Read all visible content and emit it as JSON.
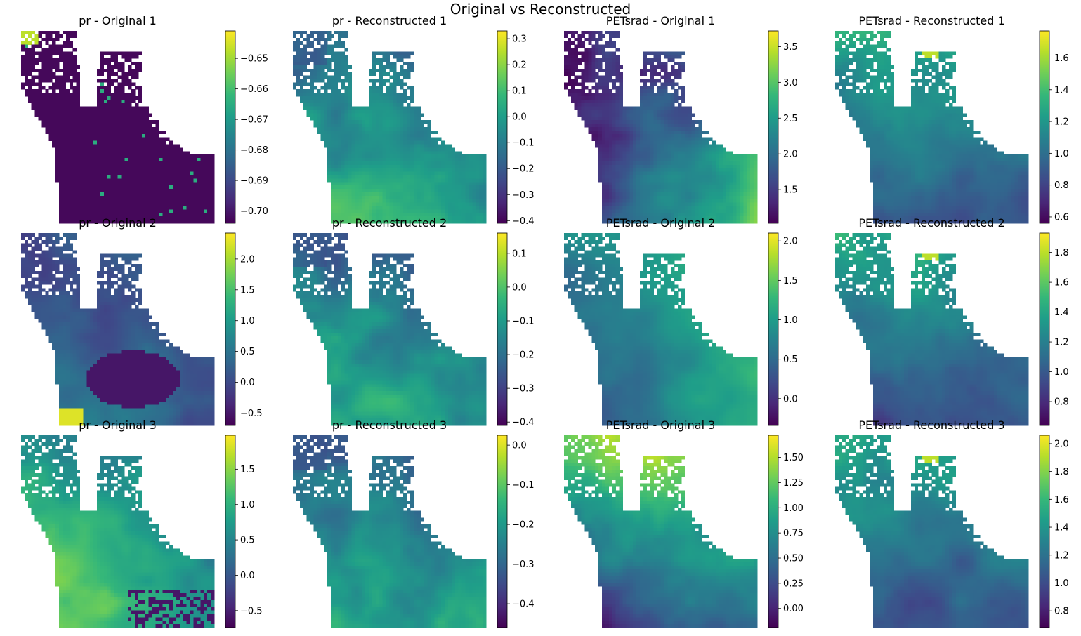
{
  "figure": {
    "suptitle": "Original vs Reconstructed"
  },
  "chart_data": [
    {
      "type": "heatmap",
      "title": "pr - Original 1",
      "variable": "pr",
      "panel": "Original",
      "index": 1,
      "colormap": "viridis",
      "colorbar": {
        "range": [
          -0.704,
          -0.641
        ],
        "ticks": [
          -0.7,
          -0.69,
          -0.68,
          -0.67,
          -0.66,
          -0.65
        ],
        "tick_labels": [
          "−0.70",
          "−0.69",
          "−0.68",
          "−0.67",
          "−0.66",
          "−0.65"
        ]
      }
    },
    {
      "type": "heatmap",
      "title": "pr - Reconstructed 1",
      "variable": "pr",
      "panel": "Reconstructed",
      "index": 1,
      "colormap": "viridis",
      "colorbar": {
        "range": [
          -0.41,
          0.33
        ],
        "ticks": [
          -0.4,
          -0.3,
          -0.2,
          -0.1,
          0.0,
          0.1,
          0.2,
          0.3
        ],
        "tick_labels": [
          "−0.4",
          "−0.3",
          "−0.2",
          "−0.1",
          "0.0",
          "0.1",
          "0.2",
          "0.3"
        ]
      }
    },
    {
      "type": "heatmap",
      "title": "PETsrad - Original 1",
      "variable": "PETsrad",
      "panel": "Original",
      "index": 1,
      "colormap": "viridis",
      "colorbar": {
        "range": [
          1.03,
          3.72
        ],
        "ticks": [
          1.5,
          2.0,
          2.5,
          3.0,
          3.5
        ],
        "tick_labels": [
          "1.5",
          "2.0",
          "2.5",
          "3.0",
          "3.5"
        ]
      }
    },
    {
      "type": "heatmap",
      "title": "PETsrad - Reconstructed 1",
      "variable": "PETsrad",
      "panel": "Reconstructed",
      "index": 1,
      "colormap": "viridis",
      "colorbar": {
        "range": [
          0.56,
          1.77
        ],
        "ticks": [
          0.6,
          0.8,
          1.0,
          1.2,
          1.4,
          1.6
        ],
        "tick_labels": [
          "0.6",
          "0.8",
          "1.0",
          "1.2",
          "1.4",
          "1.6"
        ]
      }
    },
    {
      "type": "heatmap",
      "title": "pr - Original 2",
      "variable": "pr",
      "panel": "Original",
      "index": 2,
      "colormap": "viridis",
      "colorbar": {
        "range": [
          -0.7,
          2.42
        ],
        "ticks": [
          -0.5,
          0.0,
          0.5,
          1.0,
          1.5,
          2.0
        ],
        "tick_labels": [
          "−0.5",
          "0.0",
          "0.5",
          "1.0",
          "1.5",
          "2.0"
        ]
      }
    },
    {
      "type": "heatmap",
      "title": "pr - Reconstructed 2",
      "variable": "pr",
      "panel": "Reconstructed",
      "index": 2,
      "colormap": "viridis",
      "colorbar": {
        "range": [
          -0.41,
          0.16
        ],
        "ticks": [
          -0.4,
          -0.3,
          -0.2,
          -0.1,
          0.0,
          0.1
        ],
        "tick_labels": [
          "−0.4",
          "−0.3",
          "−0.2",
          "−0.1",
          "0.0",
          "0.1"
        ]
      }
    },
    {
      "type": "heatmap",
      "title": "PETsrad - Original 2",
      "variable": "PETsrad",
      "panel": "Original",
      "index": 2,
      "colormap": "viridis",
      "colorbar": {
        "range": [
          -0.34,
          2.1
        ],
        "ticks": [
          0.0,
          0.5,
          1.0,
          1.5,
          2.0
        ],
        "tick_labels": [
          "0.0",
          "0.5",
          "1.0",
          "1.5",
          "2.0"
        ]
      }
    },
    {
      "type": "heatmap",
      "title": "PETsrad - Reconstructed 2",
      "variable": "PETsrad",
      "panel": "Reconstructed",
      "index": 2,
      "colormap": "viridis",
      "colorbar": {
        "range": [
          0.64,
          1.93
        ],
        "ticks": [
          0.8,
          1.0,
          1.2,
          1.4,
          1.6,
          1.8
        ],
        "tick_labels": [
          "0.8",
          "1.0",
          "1.2",
          "1.4",
          "1.6",
          "1.8"
        ]
      }
    },
    {
      "type": "heatmap",
      "title": "pr - Original 3",
      "variable": "pr",
      "panel": "Original",
      "index": 3,
      "colormap": "viridis",
      "colorbar": {
        "range": [
          -0.74,
          1.98
        ],
        "ticks": [
          -0.5,
          0.0,
          0.5,
          1.0,
          1.5
        ],
        "tick_labels": [
          "−0.5",
          "0.0",
          "0.5",
          "1.0",
          "1.5"
        ]
      }
    },
    {
      "type": "heatmap",
      "title": "pr - Reconstructed 3",
      "variable": "pr",
      "panel": "Reconstructed",
      "index": 3,
      "colormap": "viridis",
      "colorbar": {
        "range": [
          -0.46,
          0.025
        ],
        "ticks": [
          -0.4,
          -0.3,
          -0.2,
          -0.1,
          0.0
        ],
        "tick_labels": [
          "−0.4",
          "−0.3",
          "−0.2",
          "−0.1",
          "0.0"
        ]
      }
    },
    {
      "type": "heatmap",
      "title": "PETsrad - Original 3",
      "variable": "PETsrad",
      "panel": "Original",
      "index": 3,
      "colormap": "viridis",
      "colorbar": {
        "range": [
          -0.19,
          1.72
        ],
        "ticks": [
          0.0,
          0.25,
          0.5,
          0.75,
          1.0,
          1.25,
          1.5
        ],
        "tick_labels": [
          "0.00",
          "0.25",
          "0.50",
          "0.75",
          "1.00",
          "1.25",
          "1.50"
        ]
      }
    },
    {
      "type": "heatmap",
      "title": "PETsrad - Reconstructed 3",
      "variable": "PETsrad",
      "panel": "Reconstructed",
      "index": 3,
      "colormap": "viridis",
      "colorbar": {
        "range": [
          0.68,
          2.06
        ],
        "ticks": [
          0.8,
          1.0,
          1.2,
          1.4,
          1.6,
          1.8,
          2.0
        ],
        "tick_labels": [
          "0.8",
          "1.0",
          "1.2",
          "1.4",
          "1.6",
          "1.8",
          "2.0"
        ]
      }
    }
  ]
}
